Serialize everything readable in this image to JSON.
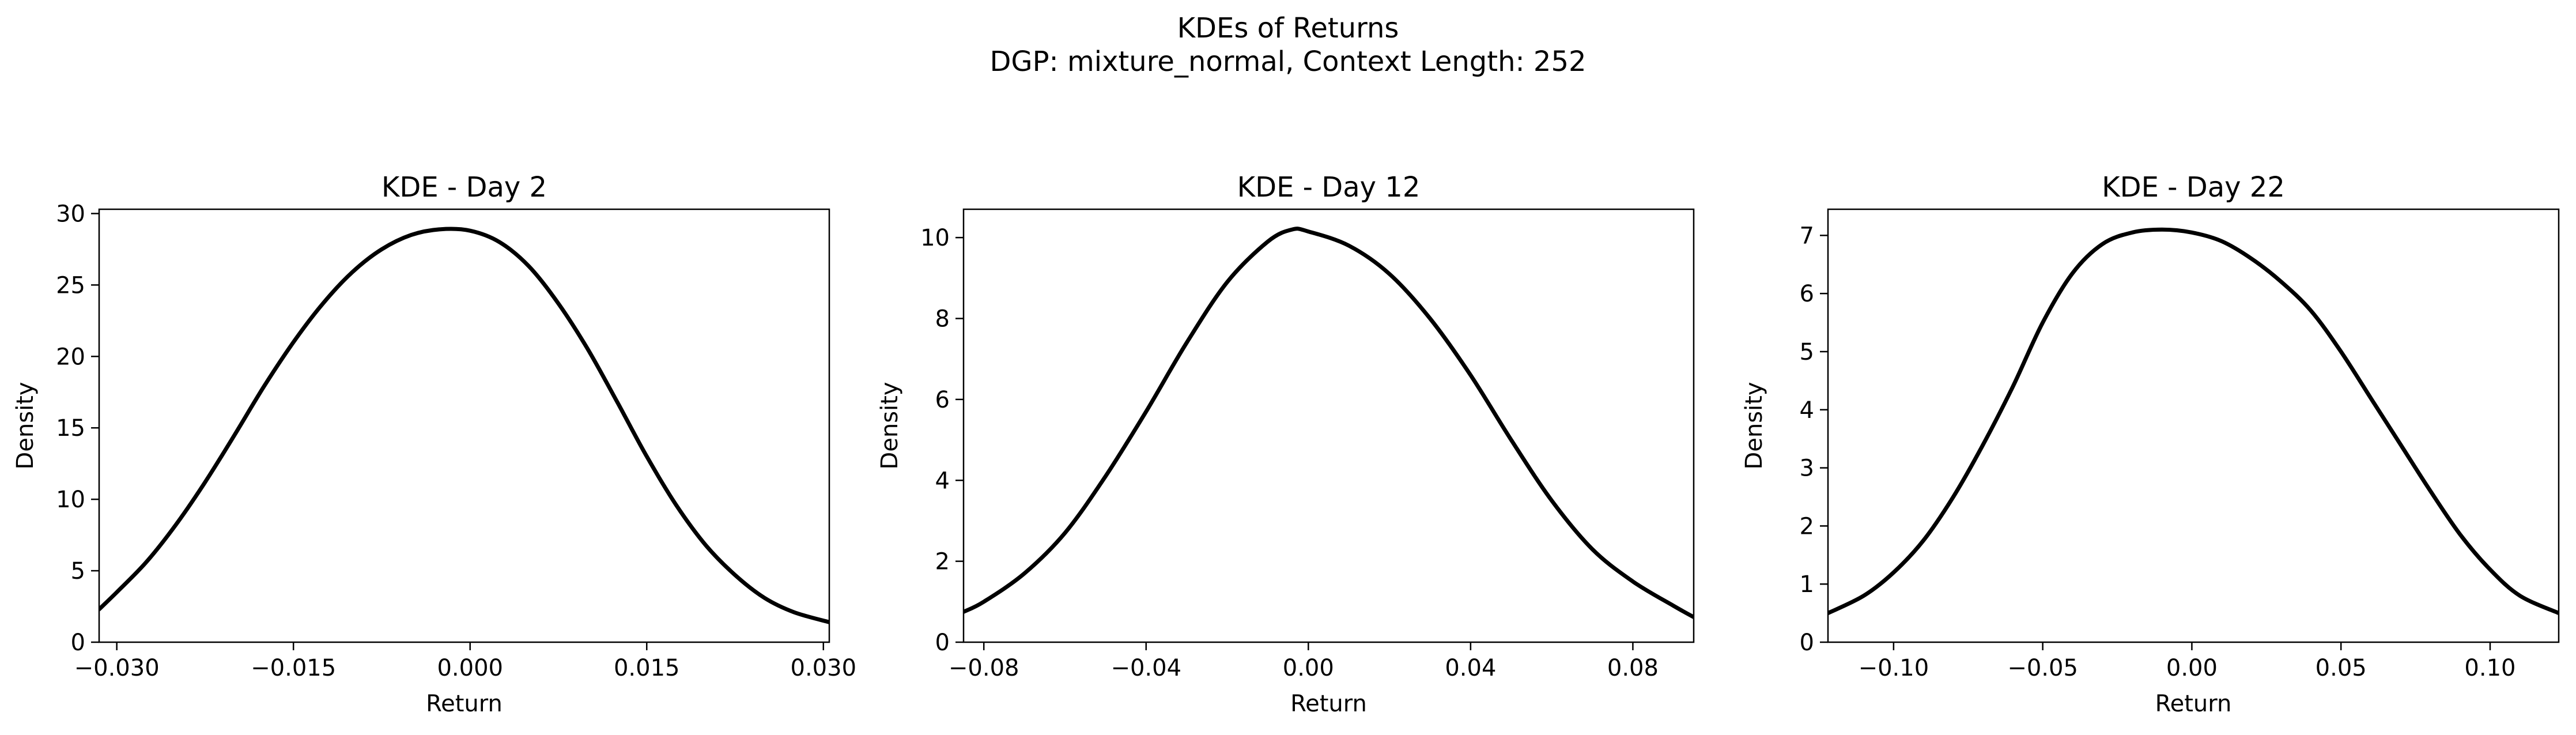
{
  "figure": {
    "suptitle_line1": "KDEs of Returns",
    "suptitle_line2": "DGP: mixture_normal, Context Length: 252"
  },
  "chart_data": [
    {
      "type": "line",
      "title": "KDE - Day 2",
      "xlabel": "Return",
      "ylabel": "Density",
      "xlim": [
        -0.0315,
        0.0305
      ],
      "ylim": [
        0,
        30.3
      ],
      "xticks": [
        -0.03,
        -0.015,
        0.0,
        0.015,
        0.03
      ],
      "xtick_labels": [
        "−0.030",
        "−0.015",
        "0.000",
        "0.015",
        "0.030"
      ],
      "yticks": [
        0,
        5,
        10,
        15,
        20,
        25,
        30
      ],
      "ytick_labels": [
        "0",
        "5",
        "10",
        "15",
        "20",
        "25",
        "30"
      ],
      "line_color": "#000000",
      "series": [
        {
          "x": [
            -0.0315,
            -0.03,
            -0.0275,
            -0.025,
            -0.0225,
            -0.02,
            -0.0175,
            -0.015,
            -0.0125,
            -0.01,
            -0.0075,
            -0.005,
            -0.0025,
            0.0,
            0.0025,
            0.005,
            0.0075,
            0.01,
            0.0125,
            0.015,
            0.0175,
            0.02,
            0.0225,
            0.025,
            0.0275,
            0.0305
          ],
          "y": [
            2.3,
            3.5,
            5.6,
            8.2,
            11.2,
            14.5,
            17.9,
            21.0,
            23.7,
            25.9,
            27.5,
            28.5,
            28.9,
            28.8,
            28.0,
            26.3,
            23.7,
            20.5,
            16.8,
            13.0,
            9.6,
            6.8,
            4.7,
            3.1,
            2.1,
            1.4
          ]
        }
      ]
    },
    {
      "type": "line",
      "title": "KDE - Day 12",
      "xlabel": "Return",
      "ylabel": "Density",
      "xlim": [
        -0.085,
        0.095
      ],
      "ylim": [
        0,
        10.7
      ],
      "xticks": [
        -0.08,
        -0.04,
        0.0,
        0.04,
        0.08
      ],
      "xtick_labels": [
        "−0.08",
        "−0.04",
        "0.00",
        "0.04",
        "0.08"
      ],
      "yticks": [
        0,
        2,
        4,
        6,
        8,
        10
      ],
      "ytick_labels": [
        "0",
        "2",
        "4",
        "6",
        "8",
        "10"
      ],
      "line_color": "#000000",
      "series": [
        {
          "x": [
            -0.085,
            -0.08,
            -0.07,
            -0.06,
            -0.05,
            -0.04,
            -0.03,
            -0.02,
            -0.01,
            -0.004,
            0.0,
            0.01,
            0.02,
            0.03,
            0.04,
            0.05,
            0.06,
            0.07,
            0.08,
            0.09,
            0.095
          ],
          "y": [
            0.75,
            1.0,
            1.7,
            2.7,
            4.1,
            5.7,
            7.4,
            8.9,
            9.9,
            10.2,
            10.15,
            9.8,
            9.1,
            8.0,
            6.6,
            5.0,
            3.5,
            2.3,
            1.5,
            0.9,
            0.62
          ]
        }
      ]
    },
    {
      "type": "line",
      "title": "KDE - Day 22",
      "xlabel": "Return",
      "ylabel": "Density",
      "xlim": [
        -0.122,
        0.123
      ],
      "ylim": [
        0,
        7.45
      ],
      "xticks": [
        -0.1,
        -0.05,
        0.0,
        0.05,
        0.1
      ],
      "xtick_labels": [
        "−0.10",
        "−0.05",
        "0.00",
        "0.05",
        "0.10"
      ],
      "yticks": [
        0,
        1,
        2,
        3,
        4,
        5,
        6,
        7
      ],
      "ytick_labels": [
        "0",
        "1",
        "2",
        "3",
        "4",
        "5",
        "6",
        "7"
      ],
      "line_color": "#000000",
      "series": [
        {
          "x": [
            -0.122,
            -0.11,
            -0.1,
            -0.09,
            -0.08,
            -0.07,
            -0.06,
            -0.05,
            -0.04,
            -0.03,
            -0.02,
            -0.01,
            0.0,
            0.01,
            0.02,
            0.03,
            0.04,
            0.05,
            0.06,
            0.07,
            0.08,
            0.09,
            0.1,
            0.11,
            0.123
          ],
          "y": [
            0.5,
            0.8,
            1.2,
            1.75,
            2.5,
            3.4,
            4.4,
            5.5,
            6.35,
            6.85,
            7.05,
            7.1,
            7.05,
            6.9,
            6.6,
            6.2,
            5.7,
            5.0,
            4.2,
            3.4,
            2.6,
            1.85,
            1.25,
            0.8,
            0.5
          ]
        }
      ]
    }
  ]
}
